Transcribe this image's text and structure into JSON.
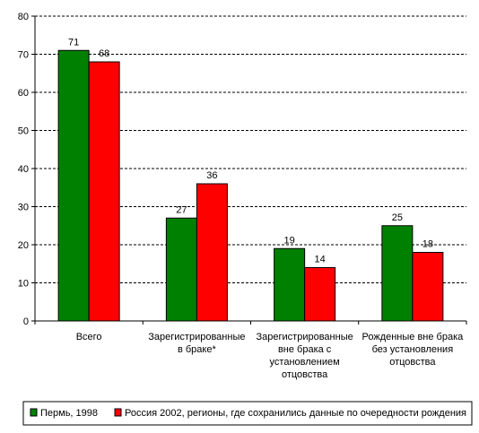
{
  "chart_data": {
    "type": "bar",
    "categories": [
      [
        "Всего"
      ],
      [
        "Зарегистрированные",
        "в браке*"
      ],
      [
        "Зарегистрированные",
        "вне брака с",
        "установлением",
        "отцовства"
      ],
      [
        "Рожденные вне брака",
        "без установления",
        "отцовства"
      ]
    ],
    "series": [
      {
        "name": "Пермь, 1998",
        "values": [
          71,
          27,
          19,
          25
        ],
        "color": "#008000"
      },
      {
        "name": "Россия 2002, регионы, где сохранились данные по очередности рождения",
        "values": [
          68,
          36,
          14,
          18
        ],
        "color": "#ff0000"
      }
    ],
    "ylim": [
      0,
      80
    ],
    "yticks": [
      0,
      10,
      20,
      30,
      40,
      50,
      60,
      70,
      80
    ],
    "grid": true,
    "legend_position": "bottom",
    "show_data_labels": true
  }
}
